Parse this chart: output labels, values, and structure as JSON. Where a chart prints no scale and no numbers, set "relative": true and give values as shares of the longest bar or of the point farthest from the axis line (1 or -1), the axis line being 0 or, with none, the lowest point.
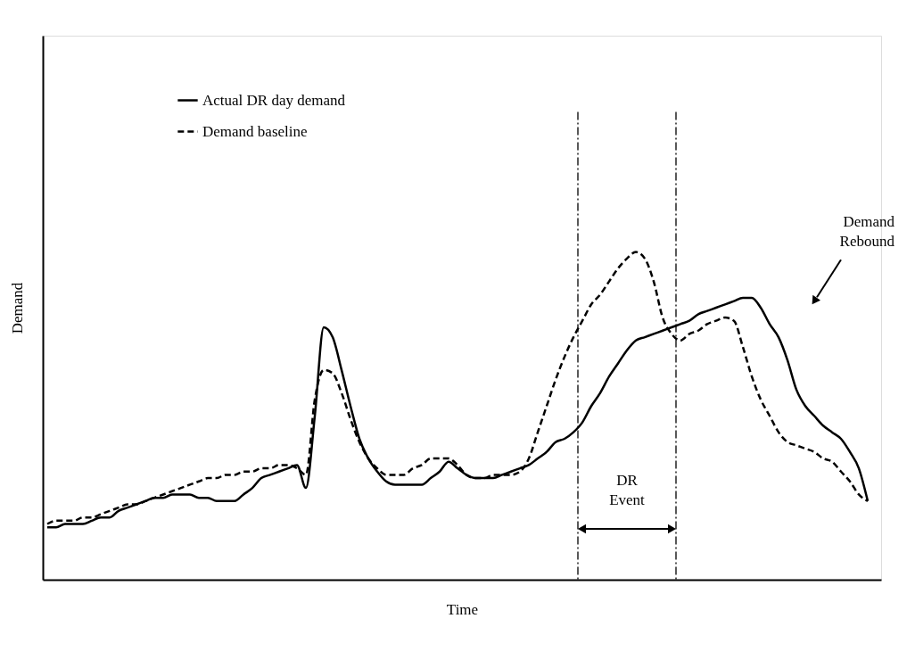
{
  "chart_data": {
    "type": "line",
    "relative": true,
    "xlabel": "Time",
    "ylabel": "Demand",
    "legend": "top left",
    "grid": false,
    "marker": "none",
    "categories": [
      null,
      null,
      null,
      null,
      null,
      null,
      null,
      null,
      null,
      null,
      null,
      null,
      null,
      null,
      null,
      null,
      null,
      null,
      null,
      null,
      null,
      null,
      null,
      null,
      null,
      null,
      null,
      null,
      null,
      null,
      null,
      null,
      null,
      null,
      null,
      null,
      null,
      null,
      null,
      null,
      null,
      null,
      null,
      null,
      null,
      null,
      null,
      null,
      null,
      null,
      null,
      null,
      null,
      null,
      null,
      null,
      null,
      null,
      null,
      null,
      null,
      null,
      null,
      null,
      null,
      null,
      null,
      null,
      null,
      null,
      null,
      null,
      null,
      null,
      null,
      null,
      null,
      null,
      null,
      null,
      null,
      null,
      null,
      null,
      null,
      null,
      null,
      null,
      null,
      null,
      null,
      null,
      null
    ],
    "series": [
      {
        "name": "Actual DR day demand",
        "color": "#000000",
        "line_style": "solid",
        "values": [
          0.16,
          0.16,
          0.17,
          0.17,
          0.17,
          0.18,
          0.19,
          0.19,
          0.21,
          0.22,
          0.23,
          0.24,
          0.25,
          0.25,
          0.26,
          0.26,
          0.26,
          0.25,
          0.25,
          0.24,
          0.24,
          0.24,
          0.26,
          0.28,
          0.31,
          0.32,
          0.33,
          0.34,
          0.35,
          0.28,
          0.5,
          0.77,
          0.74,
          0.64,
          0.53,
          0.43,
          0.37,
          0.33,
          0.3,
          0.29,
          0.29,
          0.29,
          0.29,
          0.31,
          0.33,
          0.36,
          0.34,
          0.32,
          0.31,
          0.31,
          0.31,
          0.32,
          0.33,
          0.34,
          0.35,
          0.37,
          0.39,
          0.42,
          0.43,
          0.45,
          0.48,
          0.53,
          0.57,
          0.62,
          0.66,
          0.7,
          0.73,
          0.74,
          0.75,
          0.76,
          0.77,
          0.78,
          0.79,
          0.81,
          0.82,
          0.83,
          0.84,
          0.85,
          0.86,
          0.86,
          0.83,
          0.78,
          0.74,
          0.67,
          0.58,
          0.53,
          0.5,
          0.47,
          0.45,
          0.43,
          0.39,
          0.34,
          0.24
        ]
      },
      {
        "name": "Demand baseline",
        "color": "#000000",
        "line_style": "dashed",
        "values": [
          0.17,
          0.18,
          0.18,
          0.18,
          0.19,
          0.19,
          0.2,
          0.21,
          0.22,
          0.23,
          0.23,
          0.24,
          0.25,
          0.26,
          0.27,
          0.28,
          0.29,
          0.3,
          0.31,
          0.31,
          0.32,
          0.32,
          0.33,
          0.33,
          0.34,
          0.34,
          0.35,
          0.35,
          0.34,
          0.32,
          0.55,
          0.64,
          0.63,
          0.57,
          0.49,
          0.42,
          0.37,
          0.34,
          0.32,
          0.32,
          0.32,
          0.34,
          0.35,
          0.37,
          0.37,
          0.37,
          0.35,
          0.32,
          0.31,
          0.31,
          0.32,
          0.32,
          0.32,
          0.33,
          0.37,
          0.45,
          0.53,
          0.61,
          0.68,
          0.74,
          0.79,
          0.84,
          0.87,
          0.91,
          0.95,
          0.98,
          1.0,
          0.98,
          0.91,
          0.8,
          0.75,
          0.73,
          0.75,
          0.76,
          0.78,
          0.79,
          0.8,
          0.79,
          0.71,
          0.62,
          0.55,
          0.5,
          0.45,
          0.42,
          0.41,
          0.4,
          0.39,
          0.37,
          0.36,
          0.33,
          0.3,
          0.26,
          0.24
        ]
      }
    ],
    "annotations": [
      "DR Event",
      "Demand Rebound"
    ]
  }
}
